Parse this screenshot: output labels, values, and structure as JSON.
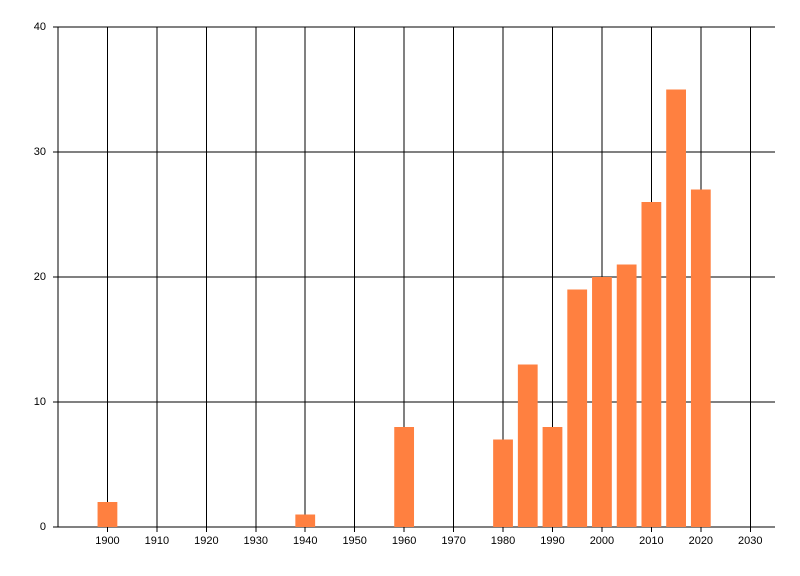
{
  "chart_data": {
    "type": "bar",
    "x": [
      1900,
      1940,
      1960,
      1980,
      1985,
      1990,
      1995,
      2000,
      2005,
      2010,
      2015,
      2020
    ],
    "values": [
      2,
      1,
      8,
      7,
      13,
      8,
      19,
      20,
      21,
      26,
      35,
      27
    ],
    "color": "#ff8040",
    "xlim": [
      1890,
      2035
    ],
    "xticks": [
      1900,
      1910,
      1920,
      1930,
      1940,
      1950,
      1960,
      1970,
      1980,
      1990,
      2000,
      2010,
      2020,
      2030
    ],
    "ylim": [
      0,
      40
    ],
    "yticks": [
      0,
      10,
      20,
      30,
      40
    ],
    "grid": true
  }
}
